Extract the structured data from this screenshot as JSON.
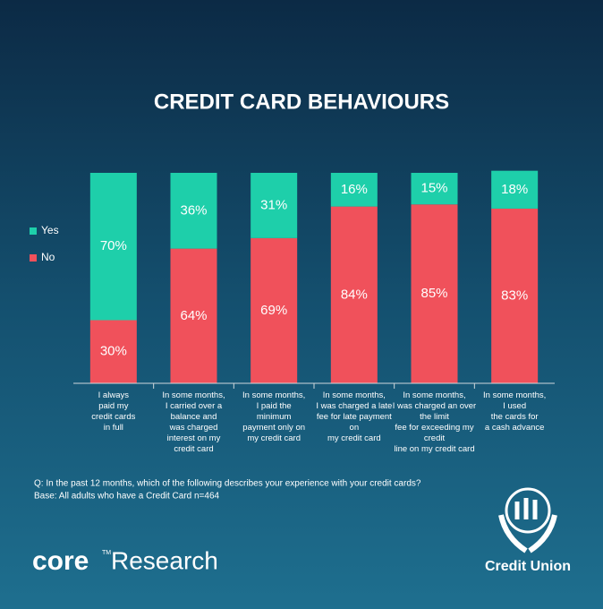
{
  "chart_data": {
    "type": "stacked_bar",
    "title": "CREDIT CARD BEHAVIOURS",
    "categories": [
      [
        "I always",
        "paid my",
        "credit cards",
        "in full"
      ],
      [
        "In some months,",
        "I carried over a",
        "balance and",
        "was charged",
        "interest on my",
        "credit card"
      ],
      [
        "In some months,",
        "I paid the",
        "minimum",
        "payment only on",
        "my credit card"
      ],
      [
        "In some months,",
        "I was charged a late",
        "fee for late payment",
        "on",
        "my credit card"
      ],
      [
        "In some months,",
        "I was charged an over",
        "the limit",
        "fee for exceeding my",
        "credit",
        "line on my credit card"
      ],
      [
        "In some months,",
        "I used",
        "the cards for",
        "a cash advance"
      ]
    ],
    "series": [
      {
        "name": "Yes",
        "color": "#1ecfaa",
        "values": [
          70,
          36,
          31,
          16,
          15,
          18
        ],
        "value_labels": [
          "70%",
          "36%",
          "31%",
          "16%",
          "15%",
          "18%"
        ]
      },
      {
        "name": "No",
        "color": "#f0515b",
        "values": [
          30,
          64,
          69,
          84,
          85,
          83
        ],
        "value_labels": [
          "30%",
          "64%",
          "69%",
          "84%",
          "85%",
          "83%"
        ]
      }
    ],
    "ylim": [
      0,
      100
    ],
    "legend": "left",
    "notes": [
      "Q: In the past 12 months, which of the following describes your experience with your credit cards?",
      "Base: All adults  who have a Credit Card n=464"
    ]
  },
  "branding": {
    "core": "core",
    "trademark": "TM",
    "research": "Research",
    "credit_union": "Credit Union"
  }
}
